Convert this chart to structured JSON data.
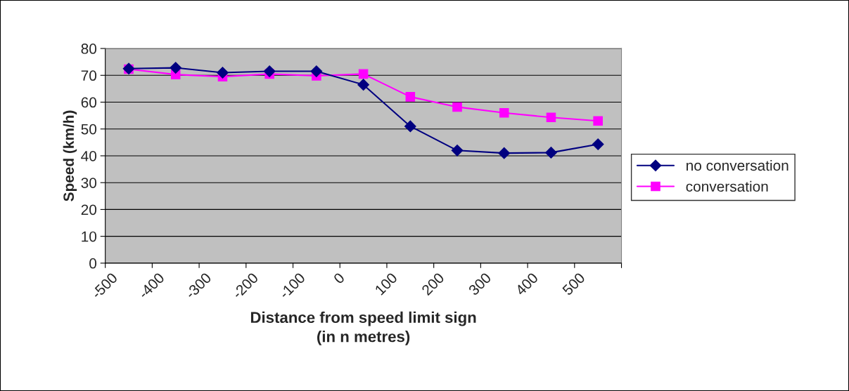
{
  "chart_data": {
    "type": "line",
    "xlabel": "Distance from speed limit sign\n(in n metres)",
    "ylabel": "Speed (km/h)",
    "x": [
      -450,
      -350,
      -250,
      -150,
      -50,
      50,
      150,
      250,
      350,
      450,
      550
    ],
    "series": [
      {
        "name": "no conversation",
        "color": "#000080",
        "marker": "diamond",
        "values": [
          72.5,
          72.8,
          71,
          71.5,
          71.5,
          66.5,
          51,
          42,
          41,
          41.2,
          44.3
        ]
      },
      {
        "name": "conversation",
        "color": "#ff00ff",
        "marker": "square",
        "values": [
          72.3,
          70.3,
          69.5,
          70.5,
          69.8,
          70.5,
          62,
          58.2,
          56,
          54.3,
          53
        ]
      }
    ],
    "xlim": [
      -500,
      600
    ],
    "xticks": [
      -500,
      -400,
      -300,
      -200,
      -100,
      0,
      100,
      200,
      300,
      400,
      500,
      {
        "value": 600,
        "label": null
      }
    ],
    "ylim": [
      0,
      80
    ],
    "yticks": [
      0,
      10,
      20,
      30,
      40,
      50,
      60,
      70,
      80
    ],
    "grid": "y",
    "legend": "right",
    "line_style": "solid"
  }
}
